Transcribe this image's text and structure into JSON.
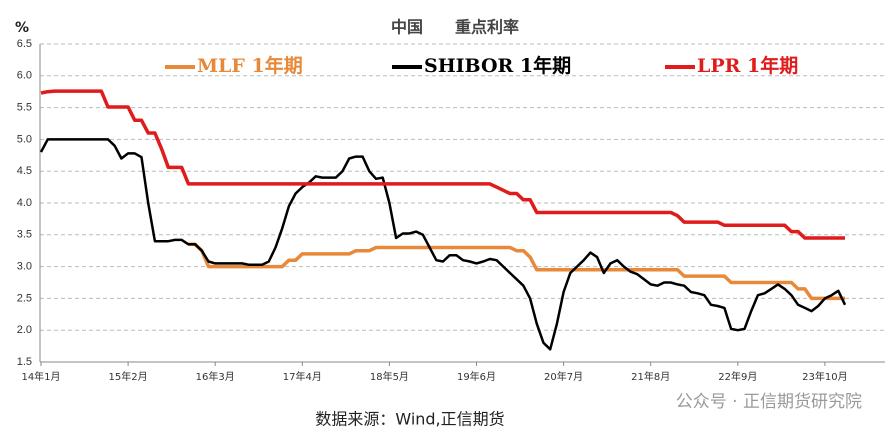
{
  "chart_data": {
    "type": "line",
    "title": "中国　　重点利率",
    "y_label": "%",
    "source": "数据来源：Wind,正信期货",
    "watermark": "公众号 · 正信期货研究院",
    "ylim": [
      1.5,
      6.5
    ],
    "yticks": [
      1.5,
      {
        "value": 2,
        "label": "2.0"
      },
      2.5,
      {
        "value": 3,
        "label": "3.0"
      },
      3.5,
      {
        "value": 4,
        "label": "4.0"
      },
      4.5,
      {
        "value": 5,
        "label": "5.0"
      },
      5.5,
      {
        "value": 6,
        "label": "6.0"
      },
      6.5
    ],
    "grid": true,
    "categories": [
      "14年1月",
      null,
      null,
      null,
      null,
      null,
      null,
      null,
      null,
      null,
      null,
      null,
      null,
      "15年2月",
      null,
      null,
      null,
      null,
      null,
      null,
      null,
      null,
      null,
      null,
      null,
      null,
      "16年3月",
      null,
      null,
      null,
      null,
      null,
      null,
      null,
      null,
      null,
      null,
      null,
      null,
      "17年4月",
      null,
      null,
      null,
      null,
      null,
      null,
      null,
      null,
      null,
      null,
      null,
      null,
      "18年5月",
      null,
      null,
      null,
      null,
      null,
      null,
      null,
      null,
      null,
      null,
      null,
      null,
      "19年6月",
      null,
      null,
      null,
      null,
      null,
      null,
      null,
      null,
      null,
      null,
      null,
      null,
      "20年7月",
      null,
      null,
      null,
      null,
      null,
      null,
      null,
      null,
      null,
      null,
      null,
      null,
      "21年8月",
      null,
      null,
      null,
      null,
      null,
      null,
      null,
      null,
      null,
      null,
      null,
      null,
      "22年9月",
      null,
      null,
      null,
      null,
      null,
      null,
      null,
      null,
      null,
      null,
      null,
      null,
      "23年10月",
      null,
      null,
      null
    ],
    "series": [
      {
        "name": "MLF 1年期",
        "color": "#e8893a",
        "values": [
          null,
          null,
          null,
          null,
          null,
          null,
          null,
          null,
          null,
          null,
          null,
          null,
          null,
          null,
          null,
          null,
          null,
          null,
          null,
          null,
          null,
          null,
          3.35,
          3.35,
          3.25,
          3.0,
          3.0,
          3.0,
          3.0,
          3.0,
          3.0,
          3.0,
          3.0,
          3.0,
          3.0,
          3.0,
          3.0,
          3.1,
          3.1,
          3.2,
          3.2,
          3.2,
          3.2,
          3.2,
          3.2,
          3.2,
          3.2,
          3.25,
          3.25,
          3.25,
          3.3,
          3.3,
          3.3,
          3.3,
          3.3,
          3.3,
          3.3,
          3.3,
          3.3,
          3.3,
          3.3,
          3.3,
          3.3,
          3.3,
          3.3,
          3.3,
          3.3,
          3.3,
          3.3,
          3.3,
          3.3,
          3.25,
          3.25,
          3.15,
          2.95,
          2.95,
          2.95,
          2.95,
          2.95,
          2.95,
          2.95,
          2.95,
          2.95,
          2.95,
          2.95,
          2.95,
          2.95,
          2.95,
          2.95,
          2.95,
          2.95,
          2.95,
          2.95,
          2.95,
          2.95,
          2.95,
          2.85,
          2.85,
          2.85,
          2.85,
          2.85,
          2.85,
          2.85,
          2.75,
          2.75,
          2.75,
          2.75,
          2.75,
          2.75,
          2.75,
          2.75,
          2.75,
          2.75,
          2.65,
          2.65,
          2.5,
          2.5,
          2.5,
          2.5,
          2.5,
          2.5
        ]
      },
      {
        "name": "SHIBOR 1年期",
        "color": "#000000",
        "values": [
          4.8,
          5,
          5,
          5,
          5,
          5,
          5,
          5,
          5,
          5,
          5,
          4.9,
          4.7,
          4.78,
          4.78,
          4.72,
          4.0,
          3.4,
          3.4,
          3.4,
          3.42,
          3.42,
          3.35,
          3.35,
          3.25,
          3.08,
          3.05,
          3.05,
          3.05,
          3.05,
          3.05,
          3.03,
          3.03,
          3.03,
          3.08,
          3.3,
          3.6,
          3.95,
          4.15,
          4.25,
          4.32,
          4.42,
          4.4,
          4.4,
          4.4,
          4.5,
          4.7,
          4.73,
          4.73,
          4.5,
          4.38,
          4.4,
          4.0,
          3.45,
          3.52,
          3.52,
          3.55,
          3.5,
          3.3,
          3.1,
          3.08,
          3.18,
          3.18,
          3.1,
          3.08,
          3.05,
          3.08,
          3.12,
          3.1,
          3.0,
          2.9,
          2.8,
          2.7,
          2.5,
          2.1,
          1.8,
          1.7,
          2.1,
          2.6,
          2.9,
          3.0,
          3.1,
          3.22,
          3.15,
          2.9,
          3.05,
          3.1,
          3.0,
          2.92,
          2.88,
          2.8,
          2.72,
          2.7,
          2.75,
          2.75,
          2.72,
          2.7,
          2.6,
          2.58,
          2.55,
          2.4,
          2.38,
          2.35,
          2.02,
          2.0,
          2.02,
          2.3,
          2.55,
          2.58,
          2.65,
          2.72,
          2.65,
          2.55,
          2.4,
          2.35,
          2.3,
          2.38,
          2.5,
          2.55,
          2.62,
          2.4
        ]
      },
      {
        "name": "LPR 1年期",
        "color": "#e01b1b",
        "values": [
          5.73,
          5.75,
          5.76,
          5.76,
          5.76,
          5.76,
          5.76,
          5.76,
          5.76,
          5.76,
          5.51,
          5.51,
          5.51,
          5.51,
          5.3,
          5.3,
          5.1,
          5.1,
          4.85,
          4.56,
          4.56,
          4.56,
          4.3,
          4.3,
          4.3,
          4.3,
          4.3,
          4.3,
          4.3,
          4.3,
          4.3,
          4.3,
          4.3,
          4.3,
          4.3,
          4.3,
          4.3,
          4.3,
          4.3,
          4.3,
          4.3,
          4.3,
          4.3,
          4.3,
          4.3,
          4.3,
          4.3,
          4.3,
          4.3,
          4.3,
          4.3,
          4.3,
          4.3,
          4.3,
          4.3,
          4.3,
          4.3,
          4.3,
          4.3,
          4.3,
          4.3,
          4.3,
          4.3,
          4.3,
          4.3,
          4.3,
          4.3,
          4.3,
          4.25,
          4.2,
          4.15,
          4.15,
          4.05,
          4.05,
          3.85,
          3.85,
          3.85,
          3.85,
          3.85,
          3.85,
          3.85,
          3.85,
          3.85,
          3.85,
          3.85,
          3.85,
          3.85,
          3.85,
          3.85,
          3.85,
          3.85,
          3.85,
          3.85,
          3.85,
          3.85,
          3.8,
          3.7,
          3.7,
          3.7,
          3.7,
          3.7,
          3.7,
          3.65,
          3.65,
          3.65,
          3.65,
          3.65,
          3.65,
          3.65,
          3.65,
          3.65,
          3.65,
          3.55,
          3.55,
          3.45,
          3.45,
          3.45,
          3.45,
          3.45,
          3.45,
          3.45
        ]
      }
    ]
  }
}
